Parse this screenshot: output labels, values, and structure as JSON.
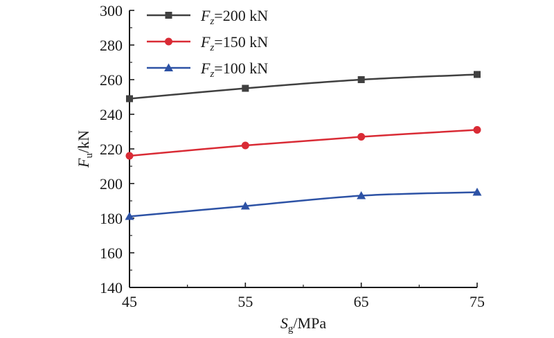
{
  "chart_data": {
    "type": "line",
    "xlabel": {
      "main": "S",
      "sub": "g",
      "unit": "/MPa"
    },
    "ylabel": {
      "main": "F",
      "sub": "u",
      "unit": "/kN"
    },
    "xlim": [
      45,
      75
    ],
    "ylim": [
      140,
      300
    ],
    "xticks": [
      45,
      55,
      65,
      75
    ],
    "yticks": [
      140,
      160,
      180,
      200,
      220,
      240,
      260,
      280,
      300
    ],
    "x": [
      45,
      55,
      65,
      75
    ],
    "grid": false,
    "legend_position": "top-left",
    "series": [
      {
        "name": "F_z=200 kN",
        "label_main": "F",
        "label_sub": "z",
        "label_rest": "=200 kN",
        "marker": "square",
        "color": "#404040",
        "values": [
          249,
          255,
          260,
          263
        ]
      },
      {
        "name": "F_z=150 kN",
        "label_main": "F",
        "label_sub": "z",
        "label_rest": "=150 kN",
        "marker": "circle",
        "color": "#d92b35",
        "values": [
          216,
          222,
          227,
          231
        ]
      },
      {
        "name": "F_z=100 kN",
        "label_main": "F",
        "label_sub": "z",
        "label_rest": "=100 kN",
        "marker": "triangle",
        "color": "#2d52a5",
        "values": [
          181,
          187,
          193,
          195
        ]
      }
    ]
  }
}
